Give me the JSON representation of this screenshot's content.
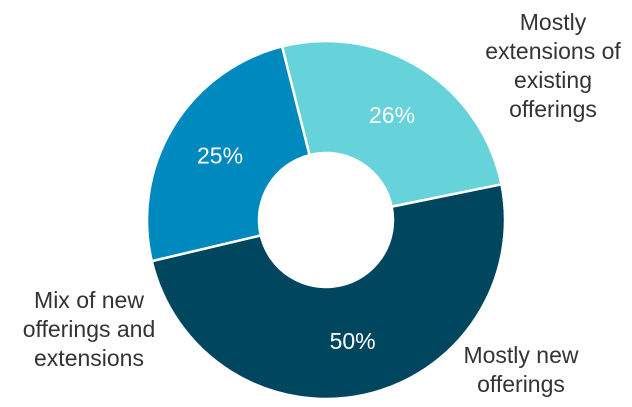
{
  "chart_data": {
    "type": "pie",
    "variant": "donut",
    "categories": [
      "Mostly extensions of existing offerings",
      "Mostly new offerings",
      "Mix of new offerings and extensions"
    ],
    "values": [
      50,
      25,
      26
    ],
    "value_labels": [
      "50%",
      "25%",
      "26%"
    ],
    "label_lines": [
      [
        "Mostly",
        "extensions of",
        "existing",
        "offerings"
      ],
      [
        "Mostly new",
        "offerings"
      ],
      [
        "Mix of new",
        "offerings and",
        "extensions"
      ]
    ],
    "colors": [
      "#00465f",
      "#0089be",
      "#66d2da"
    ],
    "title": "",
    "legend": "none"
  }
}
